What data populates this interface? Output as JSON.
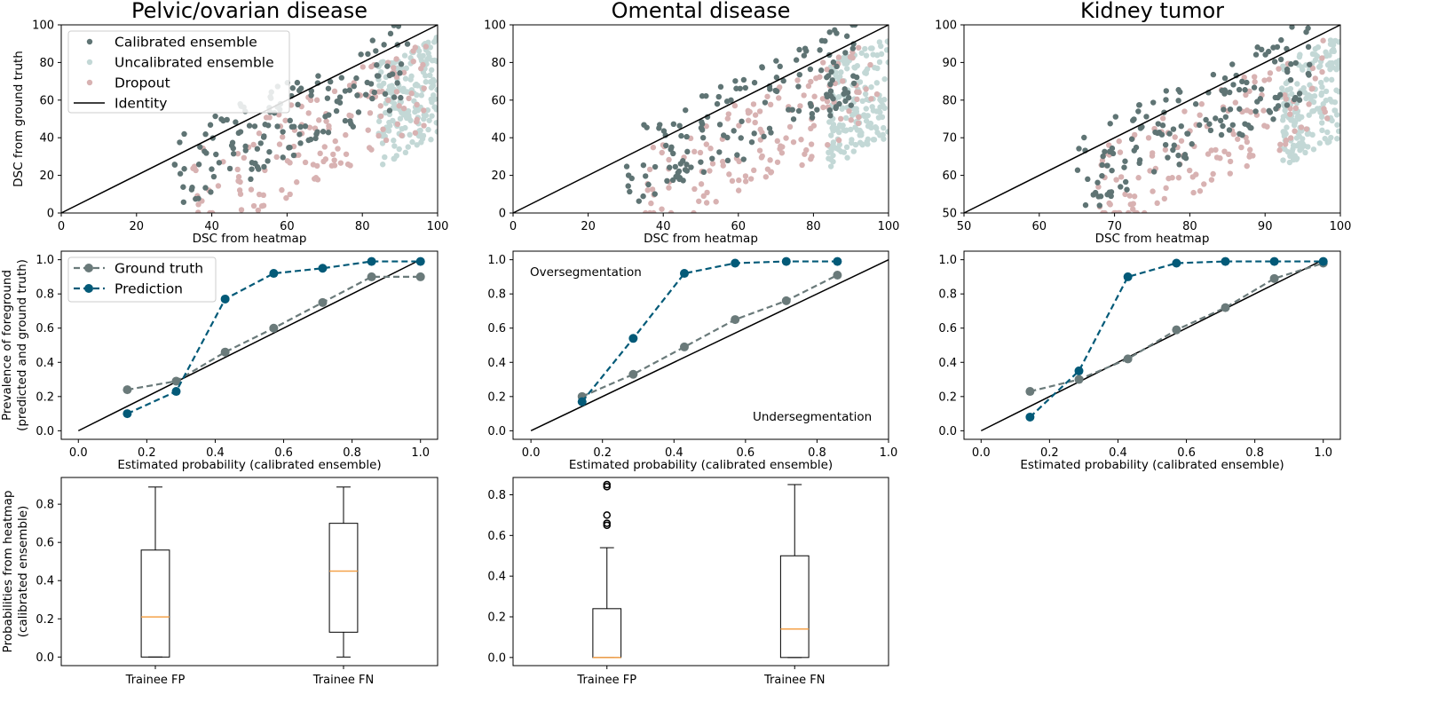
{
  "colors": {
    "calibrated": "#5f7474",
    "uncalibrated": "#c3d8d6",
    "dropout": "#d8b2b2",
    "ground_truth": "#6a7a7a",
    "prediction": "#035a78",
    "median": "#f5a24a"
  },
  "chart_data": [
    {
      "type": "scatter",
      "title": "Pelvic/ovarian disease",
      "xlabel": "DSC from heatmap",
      "ylabel": "DSC from ground truth",
      "xlim": [
        0,
        100
      ],
      "ylim": [
        0,
        100
      ],
      "xticks": [
        "0",
        "20",
        "40",
        "60",
        "80",
        "100"
      ],
      "yticks": [
        "0",
        "20",
        "40",
        "60",
        "80",
        "100"
      ],
      "legend": {
        "calibrated": "Calibrated ensemble",
        "uncalibrated": "Uncalibrated ensemble",
        "dropout": "Dropout",
        "identity": "Identity"
      },
      "identity": [
        0,
        100
      ],
      "seed": 11
    },
    {
      "type": "scatter",
      "title": "Omental disease",
      "xlabel": "DSC from heatmap",
      "ylabel": "",
      "xlim": [
        0,
        100
      ],
      "ylim": [
        0,
        100
      ],
      "xticks": [
        "0",
        "20",
        "40",
        "60",
        "80",
        "100"
      ],
      "yticks": [
        "0",
        "20",
        "40",
        "60",
        "80",
        "100"
      ],
      "identity": [
        0,
        100
      ],
      "seed": 23
    },
    {
      "type": "scatter",
      "title": "Kidney tumor",
      "xlabel": "DSC from heatmap",
      "ylabel": "",
      "xlim": [
        50,
        100
      ],
      "ylim": [
        50,
        100
      ],
      "xticks": [
        "50",
        "60",
        "70",
        "80",
        "90",
        "100"
      ],
      "yticks": [
        "50",
        "60",
        "70",
        "80",
        "90",
        "100"
      ],
      "identity": [
        50,
        100
      ],
      "seed": 37
    },
    {
      "type": "line",
      "xlabel": "Estimated probability (calibrated ensemble)",
      "ylabel": "Prevalence of foreground (predicted and ground truth)",
      "xlim": [
        -0.05,
        1.05
      ],
      "ylim": [
        -0.05,
        1.05
      ],
      "xticks": [
        "0.0",
        "0.2",
        "0.4",
        "0.6",
        "0.8",
        "1.0"
      ],
      "yticks": [
        "0.0",
        "0.2",
        "0.4",
        "0.6",
        "0.8",
        "1.0"
      ],
      "legend": {
        "ground_truth": "Ground truth",
        "prediction": "Prediction"
      },
      "x": [
        0.143,
        0.286,
        0.429,
        0.571,
        0.714,
        0.857,
        1.0
      ],
      "series": [
        {
          "name": "Ground truth",
          "values": [
            0.24,
            0.29,
            0.46,
            0.6,
            0.75,
            0.9,
            0.9
          ]
        },
        {
          "name": "Prediction",
          "values": [
            0.1,
            0.23,
            0.77,
            0.92,
            0.95,
            0.99,
            0.99
          ]
        }
      ]
    },
    {
      "type": "line",
      "xlabel": "Estimated probability (calibrated ensemble)",
      "ylabel": "",
      "xlim": [
        -0.05,
        1.0
      ],
      "ylim": [
        -0.05,
        1.05
      ],
      "xticks": [
        "0.0",
        "0.2",
        "0.4",
        "0.6",
        "0.8",
        "1.0"
      ],
      "yticks": [
        "0.0",
        "0.2",
        "0.4",
        "0.6",
        "0.8",
        "1.0"
      ],
      "annotations": {
        "over": "Oversegmentation",
        "under": "Undersegmentation"
      },
      "x": [
        0.143,
        0.286,
        0.429,
        0.571,
        0.714,
        0.857
      ],
      "series": [
        {
          "name": "Ground truth",
          "values": [
            0.2,
            0.33,
            0.49,
            0.65,
            0.76,
            0.91
          ]
        },
        {
          "name": "Prediction",
          "values": [
            0.17,
            0.54,
            0.92,
            0.98,
            0.99,
            0.99
          ]
        }
      ]
    },
    {
      "type": "line",
      "xlabel": "Estimated probability (calibrated ensemble)",
      "ylabel": "",
      "xlim": [
        -0.05,
        1.05
      ],
      "ylim": [
        -0.05,
        1.05
      ],
      "xticks": [
        "0.0",
        "0.2",
        "0.4",
        "0.6",
        "0.8",
        "1.0"
      ],
      "yticks": [
        "0.0",
        "0.2",
        "0.4",
        "0.6",
        "0.8",
        "1.0"
      ],
      "x": [
        0.143,
        0.286,
        0.429,
        0.571,
        0.714,
        0.857,
        1.0
      ],
      "series": [
        {
          "name": "Ground truth",
          "values": [
            0.23,
            0.3,
            0.42,
            0.59,
            0.72,
            0.89,
            0.98
          ]
        },
        {
          "name": "Prediction",
          "values": [
            0.08,
            0.35,
            0.9,
            0.98,
            0.99,
            0.99,
            0.99
          ]
        }
      ]
    },
    {
      "type": "box",
      "xlabel": "",
      "ylabel": "Probabilities from heatmap (calibrated ensemble)",
      "ylim": [
        -0.045,
        0.94
      ],
      "yticks": [
        "0.0",
        "0.2",
        "0.4",
        "0.6",
        "0.8"
      ],
      "categories": [
        "Trainee FP",
        "Trainee FN"
      ],
      "boxes": [
        {
          "whislo": 0.0,
          "q1": 0.0,
          "med": 0.21,
          "q3": 0.56,
          "whishi": 0.89,
          "fliers": []
        },
        {
          "whislo": 0.0,
          "q1": 0.13,
          "med": 0.45,
          "q3": 0.7,
          "whishi": 0.89,
          "fliers": []
        }
      ]
    },
    {
      "type": "box",
      "xlabel": "",
      "ylabel": "",
      "ylim": [
        -0.04,
        0.885
      ],
      "yticks": [
        "0.0",
        "0.2",
        "0.4",
        "0.6",
        "0.8"
      ],
      "categories": [
        "Trainee FP",
        "Trainee FN"
      ],
      "boxes": [
        {
          "whislo": 0.0,
          "q1": 0.0,
          "med": 0.0,
          "q3": 0.24,
          "whishi": 0.54,
          "fliers": [
            0.65,
            0.66,
            0.7,
            0.84,
            0.85
          ]
        },
        {
          "whislo": 0.0,
          "q1": 0.0,
          "med": 0.14,
          "q3": 0.5,
          "whishi": 0.85,
          "fliers": []
        }
      ]
    }
  ]
}
